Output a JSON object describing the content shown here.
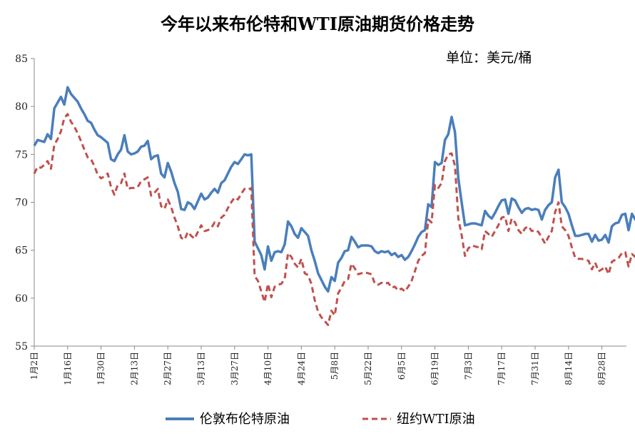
{
  "chart_data": {
    "type": "line",
    "title": "今年以来布伦特和WTI原油期货价格走势",
    "unit_label": "单位：美元/桶",
    "xlabel": "",
    "ylabel": "",
    "ylim": [
      55,
      85
    ],
    "y_ticks": [
      "55",
      "60",
      "65",
      "70",
      "75",
      "80",
      "85"
    ],
    "x_ticks": [
      "1月2日",
      "1月16日",
      "1月30日",
      "2月13日",
      "2月27日",
      "3月13日",
      "3月27日",
      "4月10日",
      "4月24日",
      "5月8日",
      "5月22日",
      "6月5日",
      "6月19日",
      "7月3日",
      "7月17日",
      "7月31日",
      "8月14日",
      "8月28日"
    ],
    "grid": false,
    "legend_position": "bottom",
    "series": [
      {
        "name": "伦敦布伦特原油",
        "color": "#4a7ebb",
        "style": "solid",
        "values": [
          75.9,
          76.5,
          76.4,
          76.3,
          77.1,
          76.6,
          79.8,
          80.4,
          81.0,
          80.2,
          82.0,
          81.3,
          80.9,
          80.5,
          79.8,
          79.2,
          78.5,
          78.3,
          77.6,
          77.0,
          76.8,
          76.5,
          76.2,
          74.5,
          74.3,
          75.0,
          75.5,
          77.0,
          75.3,
          75.0,
          75.1,
          75.3,
          75.8,
          75.9,
          76.4,
          74.5,
          74.8,
          74.9,
          73.0,
          72.6,
          74.1,
          73.2,
          72.0,
          71.1,
          69.3,
          69.2,
          70.0,
          69.8,
          69.3,
          70.1,
          70.9,
          70.3,
          70.5,
          71.0,
          71.4,
          71.0,
          72.0,
          72.3,
          73.0,
          73.7,
          74.2,
          74.0,
          74.5,
          75.0,
          74.9,
          75.0,
          65.9,
          65.2,
          64.5,
          63.0,
          65.4,
          63.9,
          64.8,
          64.9,
          64.8,
          65.6,
          68.0,
          67.5,
          66.7,
          66.3,
          67.3,
          66.9,
          66.5,
          65.0,
          63.9,
          62.6,
          61.9,
          61.2,
          60.7,
          62.2,
          61.8,
          63.7,
          64.2,
          64.9,
          65.0,
          66.4,
          65.9,
          65.3,
          65.5,
          65.5,
          65.5,
          65.4,
          64.9,
          64.7,
          64.9,
          64.8,
          64.9,
          64.5,
          64.7,
          64.3,
          64.5,
          64.0,
          64.3,
          64.9,
          65.6,
          66.4,
          66.9,
          67.1,
          69.8,
          69.5,
          74.2,
          73.9,
          74.1,
          76.5,
          77.1,
          78.9,
          77.3,
          72.5,
          70.0,
          67.6,
          67.7,
          67.8,
          67.8,
          67.7,
          67.6,
          69.1,
          68.6,
          68.3,
          68.9,
          69.6,
          70.2,
          70.3,
          68.8,
          70.4,
          70.2,
          69.5,
          68.9,
          69.3,
          69.4,
          69.2,
          69.3,
          69.2,
          68.2,
          69.2,
          69.7,
          70.0,
          72.6,
          73.4,
          70.0,
          69.5,
          68.8,
          67.6,
          66.5,
          66.5,
          66.6,
          66.7,
          66.7,
          65.9,
          66.6,
          66.0,
          66.1,
          66.6,
          65.8,
          67.5,
          67.8,
          67.9,
          68.7,
          68.8,
          67.1,
          68.8,
          68.2,
          68.0,
          69.1,
          67.5,
          67.1,
          65.6,
          65.8,
          66.1
        ]
      },
      {
        "name": "纽约WTI原油",
        "color": "#c0504d",
        "style": "dashed",
        "values": [
          73.0,
          73.7,
          73.6,
          73.9,
          74.3,
          73.5,
          76.0,
          76.6,
          77.4,
          78.8,
          79.2,
          78.4,
          77.9,
          77.2,
          76.4,
          75.5,
          74.7,
          74.5,
          73.8,
          72.9,
          72.5,
          72.7,
          73.0,
          71.6,
          70.8,
          71.8,
          72.0,
          73.0,
          71.4,
          71.5,
          71.5,
          71.6,
          72.2,
          72.4,
          72.6,
          70.7,
          71.0,
          71.4,
          69.6,
          69.3,
          70.3,
          69.5,
          68.4,
          67.5,
          66.3,
          66.1,
          66.9,
          66.5,
          66.2,
          66.9,
          67.6,
          67.0,
          67.1,
          67.3,
          67.9,
          67.5,
          68.4,
          68.7,
          69.4,
          70.0,
          70.5,
          70.3,
          70.9,
          71.4,
          71.3,
          71.5,
          62.3,
          61.8,
          60.7,
          59.6,
          61.5,
          60.1,
          61.2,
          61.4,
          61.5,
          62.0,
          64.7,
          64.3,
          63.6,
          63.2,
          64.1,
          62.6,
          62.4,
          61.5,
          59.8,
          58.6,
          58.0,
          57.6,
          57.2,
          58.7,
          58.2,
          60.5,
          61.1,
          61.8,
          62.0,
          63.6,
          63.1,
          62.5,
          62.6,
          62.7,
          62.6,
          62.5,
          61.5,
          61.4,
          61.6,
          61.5,
          61.6,
          61.1,
          61.2,
          60.8,
          61.0,
          60.7,
          61.2,
          61.8,
          62.8,
          63.9,
          64.4,
          64.7,
          68.2,
          67.9,
          71.8,
          71.5,
          72.0,
          74.3,
          75.0,
          75.1,
          73.8,
          68.3,
          66.6,
          64.4,
          65.2,
          65.5,
          65.4,
          65.3,
          65.1,
          67.0,
          66.7,
          66.4,
          67.0,
          67.6,
          68.4,
          68.5,
          67.0,
          68.3,
          67.9,
          67.1,
          66.7,
          67.3,
          67.5,
          67.0,
          67.1,
          66.9,
          66.3,
          65.7,
          66.4,
          67.0,
          69.0,
          70.0,
          67.5,
          67.1,
          66.5,
          65.3,
          64.2,
          64.1,
          64.1,
          64.0,
          63.9,
          63.0,
          63.7,
          62.8,
          63.0,
          63.3,
          62.5,
          63.8,
          64.0,
          64.2,
          64.7,
          64.8,
          63.3,
          64.6,
          64.3,
          64.0,
          65.5,
          63.7,
          62.0,
          61.9,
          62.0,
          62.3
        ]
      }
    ]
  }
}
